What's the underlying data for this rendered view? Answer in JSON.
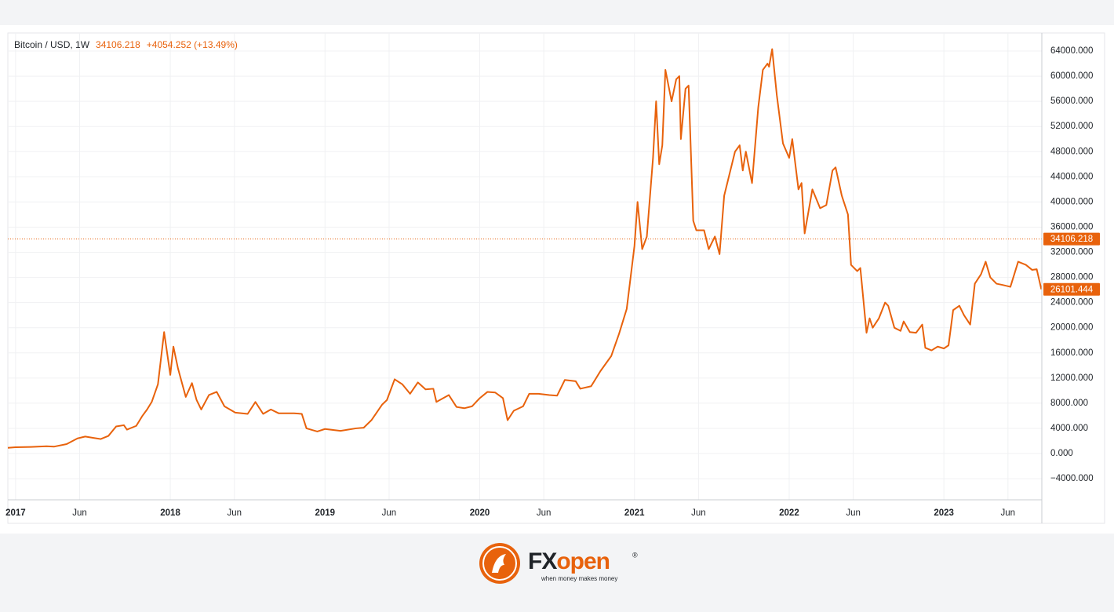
{
  "chart_data": {
    "type": "line",
    "title": "Bitcoin / USD, 1W",
    "header_price": "34106.218",
    "header_change": "+4054.252 (+13.49%)",
    "color": "#e8620c",
    "price_line": {
      "value": 34106.218,
      "label": "34106.218"
    },
    "last_price": {
      "value": 26101.444,
      "label": "26101.444"
    },
    "xlim": [
      2016.95,
      2023.633
    ],
    "ylim": [
      -7360,
      66870
    ],
    "grid": true,
    "xticks": [
      2017,
      {
        "value": 2017.414,
        "label": "Jun"
      },
      2018,
      {
        "value": 2018.414,
        "label": "Jun"
      },
      2019,
      {
        "value": 2019.414,
        "label": "Jun"
      },
      2020,
      {
        "value": 2020.414,
        "label": "Jun"
      },
      2021,
      {
        "value": 2021.414,
        "label": "Jun"
      },
      2022,
      {
        "value": 2022.414,
        "label": "Jun"
      },
      2023,
      {
        "value": 2023.414,
        "label": "Jun"
      }
    ],
    "yticks": [
      {
        "value": -4000,
        "label": "−4000.000"
      },
      {
        "value": 0,
        "label": "0.000"
      },
      {
        "value": 4000,
        "label": "4000.000"
      },
      {
        "value": 8000,
        "label": "8000.000"
      },
      {
        "value": 12000,
        "label": "12000.000"
      },
      {
        "value": 16000,
        "label": "16000.000"
      },
      {
        "value": 20000,
        "label": "20000.000"
      },
      {
        "value": 24000,
        "label": "24000.000"
      },
      {
        "value": 28000,
        "label": "28000.000"
      },
      {
        "value": 32000,
        "label": "32000.000"
      },
      {
        "value": 36000,
        "label": "36000.000"
      },
      {
        "value": 40000,
        "label": "40000.000"
      },
      {
        "value": 44000,
        "label": "44000.000"
      },
      {
        "value": 48000,
        "label": "48000.000"
      },
      {
        "value": 52000,
        "label": "52000.000"
      },
      {
        "value": 56000,
        "label": "56000.000"
      },
      {
        "value": 60000,
        "label": "60000.000"
      },
      {
        "value": 64000,
        "label": "64000.000"
      }
    ],
    "x": [
      2016.95,
      2017.0,
      2017.1,
      2017.2,
      2017.25,
      2017.33,
      2017.4,
      2017.45,
      2017.5,
      2017.55,
      2017.6,
      2017.65,
      2017.7,
      2017.72,
      2017.78,
      2017.82,
      2017.85,
      2017.88,
      2017.92,
      2017.96,
      2018.0,
      2018.02,
      2018.05,
      2018.1,
      2018.14,
      2018.17,
      2018.2,
      2018.25,
      2018.3,
      2018.35,
      2018.42,
      2018.5,
      2018.55,
      2018.6,
      2018.65,
      2018.7,
      2018.8,
      2018.85,
      2018.88,
      2018.95,
      2019.0,
      2019.1,
      2019.2,
      2019.25,
      2019.3,
      2019.37,
      2019.4,
      2019.45,
      2019.5,
      2019.55,
      2019.6,
      2019.65,
      2019.7,
      2019.72,
      2019.8,
      2019.85,
      2019.9,
      2019.95,
      2020.0,
      2020.05,
      2020.1,
      2020.15,
      2020.18,
      2020.22,
      2020.28,
      2020.32,
      2020.38,
      2020.45,
      2020.5,
      2020.55,
      2020.62,
      2020.65,
      2020.72,
      2020.78,
      2020.85,
      2020.9,
      2020.95,
      2021.0,
      2021.02,
      2021.05,
      2021.08,
      2021.12,
      2021.14,
      2021.16,
      2021.18,
      2021.2,
      2021.24,
      2021.27,
      2021.29,
      2021.3,
      2021.33,
      2021.35,
      2021.38,
      2021.4,
      2021.45,
      2021.48,
      2021.52,
      2021.55,
      2021.58,
      2021.65,
      2021.68,
      2021.7,
      2021.72,
      2021.76,
      2021.8,
      2021.83,
      2021.86,
      2021.87,
      2021.89,
      2021.92,
      2021.96,
      2022.0,
      2022.02,
      2022.06,
      2022.08,
      2022.1,
      2022.15,
      2022.2,
      2022.24,
      2022.28,
      2022.3,
      2022.34,
      2022.38,
      2022.4,
      2022.44,
      2022.46,
      2022.5,
      2022.52,
      2022.54,
      2022.58,
      2022.62,
      2022.64,
      2022.68,
      2022.72,
      2022.74,
      2022.78,
      2022.82,
      2022.86,
      2022.88,
      2022.92,
      2022.96,
      2023.0,
      2023.03,
      2023.06,
      2023.1,
      2023.13,
      2023.17,
      2023.2,
      2023.24,
      2023.27,
      2023.3,
      2023.34,
      2023.38,
      2023.43,
      2023.48,
      2023.53,
      2023.57,
      2023.6,
      2023.63
    ],
    "values": [
      900,
      1000,
      1050,
      1150,
      1100,
      1500,
      2400,
      2700,
      2500,
      2300,
      2800,
      4300,
      4500,
      3800,
      4400,
      6000,
      7000,
      8200,
      11000,
      19300,
      12500,
      17000,
      13500,
      9000,
      11200,
      8500,
      7000,
      9300,
      9800,
      7500,
      6500,
      6300,
      8200,
      6300,
      7000,
      6400,
      6400,
      6300,
      4000,
      3500,
      3900,
      3600,
      4000,
      4100,
      5300,
      7800,
      8500,
      11800,
      11000,
      9500,
      11300,
      10200,
      10300,
      8200,
      9300,
      7400,
      7200,
      7500,
      8800,
      9800,
      9700,
      8800,
      5300,
      6800,
      7500,
      9500,
      9500,
      9300,
      9200,
      11700,
      11500,
      10300,
      10700,
      13100,
      15500,
      19000,
      23000,
      33000,
      40000,
      32500,
      34500,
      47000,
      56000,
      46000,
      49000,
      61000,
      56000,
      59500,
      60000,
      50000,
      58000,
      58500,
      37000,
      35500,
      35500,
      32500,
      34500,
      31700,
      41000,
      48000,
      49000,
      45000,
      48000,
      43000,
      55000,
      61000,
      62000,
      61500,
      64300,
      57000,
      49300,
      47000,
      50000,
      42000,
      43000,
      35000,
      42000,
      39000,
      39500,
      45000,
      45500,
      41000,
      38000,
      30000,
      29000,
      29500,
      19200,
      21500,
      20000,
      21500,
      24000,
      23500,
      20000,
      19500,
      21000,
      19300,
      19200,
      20500,
      16800,
      16400,
      17000,
      16700,
      17200,
      22800,
      23500,
      22000,
      20500,
      27000,
      28500,
      30500,
      28000,
      27000,
      26800,
      26500,
      30500,
      30000,
      29200,
      29300,
      26101.444
    ]
  },
  "footer": {
    "brand_fx": "FX",
    "brand_open": "open",
    "registered": "®",
    "tagline": "when money makes money"
  }
}
